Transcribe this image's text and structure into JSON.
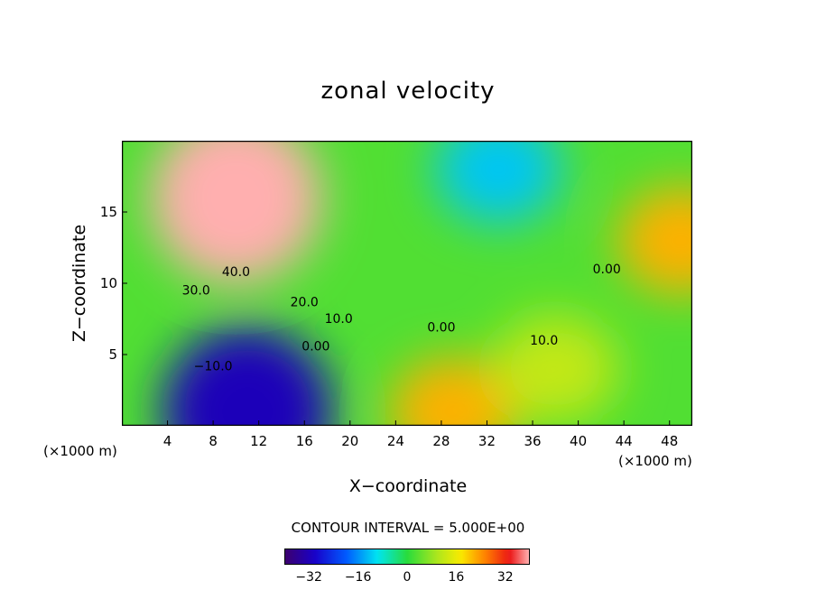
{
  "chart_data": {
    "type": "heatmap",
    "title": "zonal velocity",
    "xlabel": "X−coordinate",
    "ylabel": "Z−coordinate",
    "x_unit": "(×1000 m)",
    "y_unit": "(×1000 m)",
    "xlim": [
      0,
      50
    ],
    "ylim": [
      0,
      20
    ],
    "x_ticks": [
      "4",
      "8",
      "12",
      "16",
      "20",
      "24",
      "28",
      "32",
      "36",
      "40",
      "44",
      "48"
    ],
    "y_ticks": [
      "5",
      "10",
      "15"
    ],
    "contour_interval": "CONTOUR INTERVAL = 5.000E+00",
    "contour_labels": [
      "40.0",
      "30.0",
      "20.0",
      "10.0",
      "0.00",
      "−10.0",
      "0.00",
      "10.0",
      "0.00"
    ],
    "colorbar": {
      "range": [
        -40,
        40
      ],
      "ticks": [
        "−32",
        "−16",
        "0",
        "16",
        "32"
      ]
    },
    "field_features": [
      {
        "x": 10,
        "z": 16,
        "value": 45
      },
      {
        "x": 11,
        "z": 1,
        "value": -32
      },
      {
        "x": 33,
        "z": 18,
        "value": -12
      },
      {
        "x": 29,
        "z": 1,
        "value": 22
      },
      {
        "x": 38,
        "z": 4,
        "value": 12
      },
      {
        "x": 49,
        "z": 13,
        "value": 22
      }
    ],
    "grid": false
  }
}
